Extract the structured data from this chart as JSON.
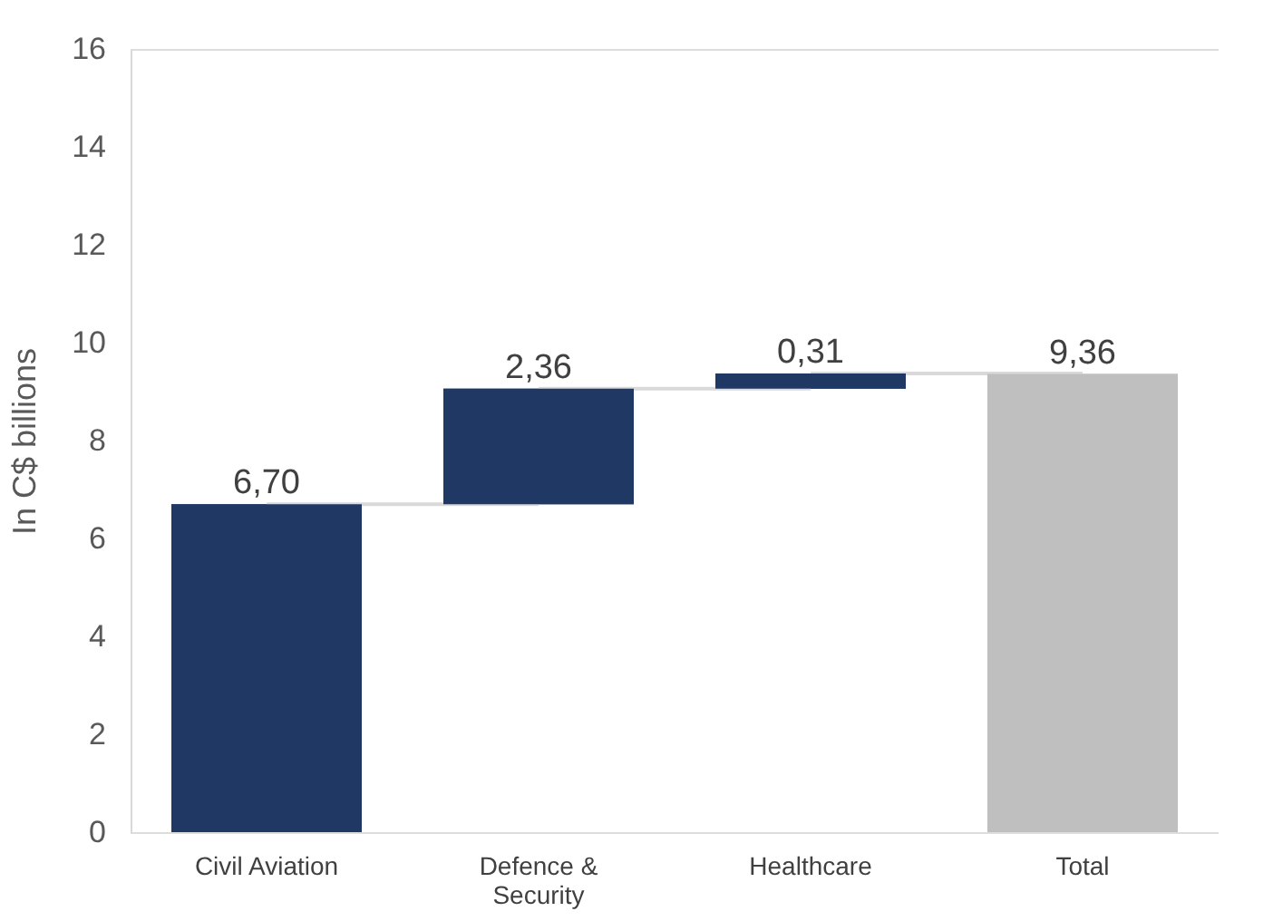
{
  "chart_data": {
    "type": "bar",
    "ylabel": "In C$ billions",
    "categories": [
      "Civil Aviation",
      "Defence & Security",
      "Healthcare",
      "Total"
    ],
    "values": [
      6.7,
      2.36,
      0.31,
      9.36
    ],
    "base": [
      0,
      6.7,
      9.06,
      0
    ],
    "colors": [
      "#203864",
      "#203864",
      "#203864",
      "#bfbfbf"
    ],
    "value_labels": [
      "6,70",
      "2,36",
      "0,31",
      "9,36"
    ],
    "ylim": [
      0,
      16
    ],
    "yticks": [
      0,
      2,
      4,
      6,
      8,
      10,
      12,
      14,
      16
    ],
    "grid": false
  }
}
